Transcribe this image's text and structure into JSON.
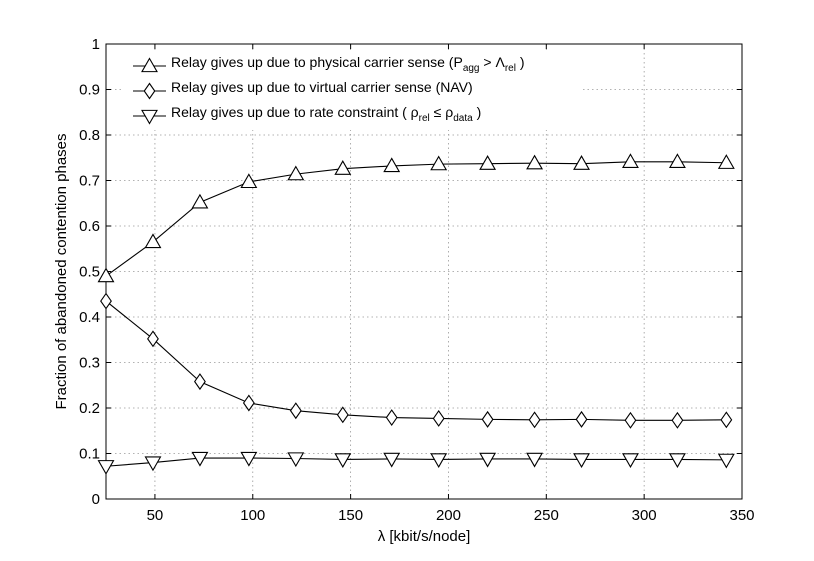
{
  "chart_data": {
    "type": "line",
    "xlabel": "λ [kbit/s/node]",
    "ylabel": "Fraction of abandoned contention phases",
    "xlim": [
      25,
      350
    ],
    "ylim": [
      0,
      1
    ],
    "xticks": [
      50,
      100,
      150,
      200,
      250,
      300,
      350
    ],
    "yticks": [
      0,
      0.1,
      0.2,
      0.3,
      0.4,
      0.5,
      0.6,
      0.7,
      0.8,
      0.9,
      1
    ],
    "grid": true,
    "legend_position": "top-left",
    "x": [
      25,
      49,
      73,
      98,
      122,
      146,
      171,
      195,
      220,
      244,
      268,
      293,
      317,
      342
    ],
    "series": [
      {
        "legend_main": "Relay gives up due to physical carrier sense (P",
        "legend_parts": [
          "agg",
          " > Λ",
          "rel",
          " )"
        ],
        "marker": "triangle-up",
        "values": [
          0.49,
          0.565,
          0.652,
          0.697,
          0.714,
          0.726,
          0.732,
          0.736,
          0.737,
          0.738,
          0.737,
          0.741,
          0.741,
          0.739
        ]
      },
      {
        "legend_main": "Relay gives up due to virtual carrier sense (NAV)",
        "legend_parts": [],
        "marker": "diamond",
        "values": [
          0.435,
          0.352,
          0.258,
          0.211,
          0.194,
          0.185,
          0.179,
          0.177,
          0.175,
          0.174,
          0.175,
          0.173,
          0.173,
          0.174
        ]
      },
      {
        "legend_main": "Relay gives up due to rate constraint ( ρ",
        "legend_parts": [
          "rel",
          " ≤ ρ",
          "data",
          " )"
        ],
        "marker": "triangle-down",
        "values": [
          0.072,
          0.08,
          0.09,
          0.09,
          0.089,
          0.087,
          0.088,
          0.087,
          0.088,
          0.088,
          0.087,
          0.087,
          0.087,
          0.086
        ]
      }
    ]
  }
}
